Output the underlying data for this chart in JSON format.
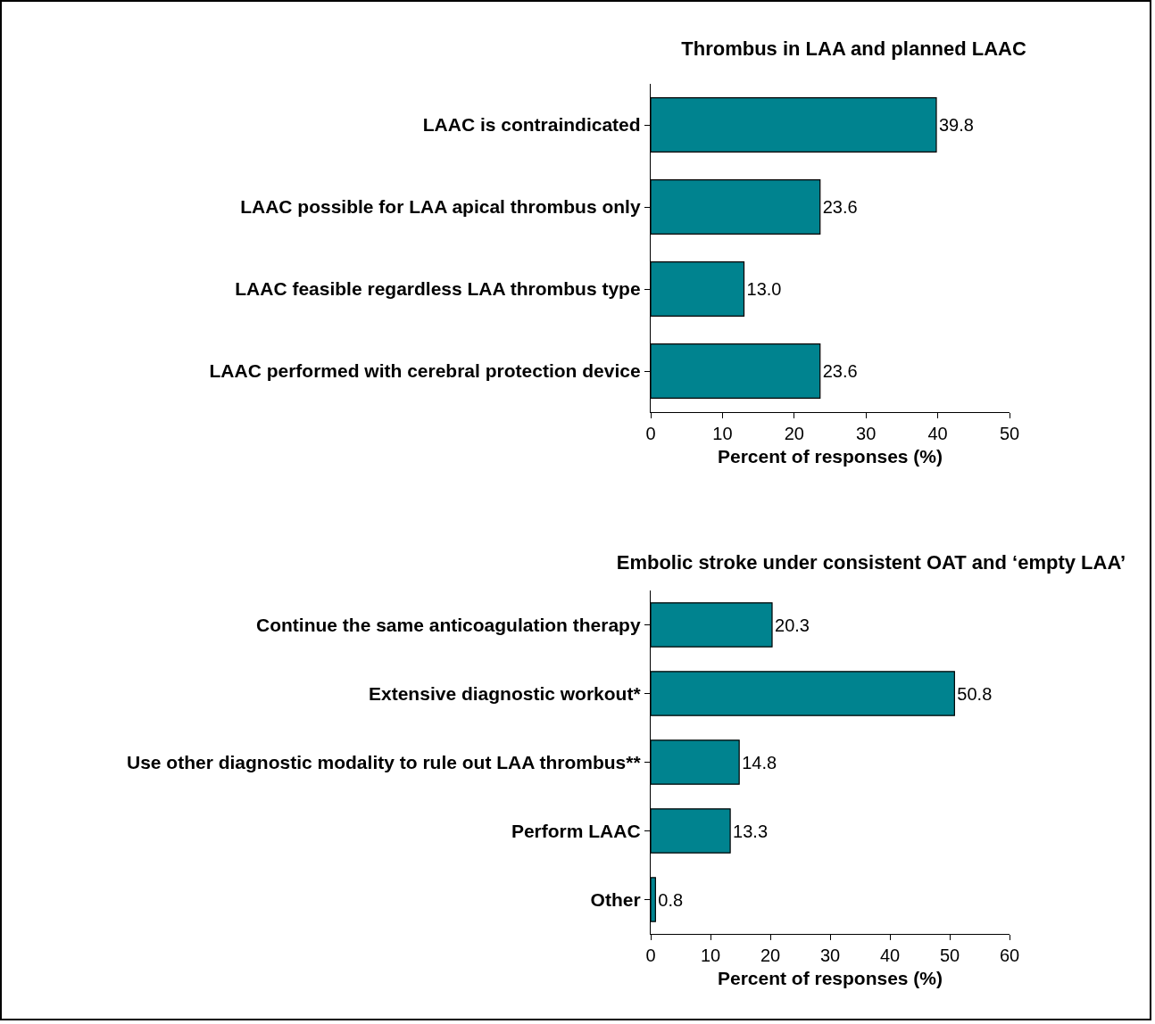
{
  "chart_data": [
    {
      "type": "bar",
      "orientation": "horizontal",
      "title": "Thrombus in LAA and planned LAAC",
      "xlabel": "Percent of responses (%)",
      "categories": [
        "LAAC is contraindicated",
        "LAAC possible for LAA apical thrombus only",
        "LAAC feasible regardless LAA thrombus type",
        "LAAC performed with cerebral protection device"
      ],
      "values": [
        39.8,
        23.6,
        13.0,
        23.6
      ],
      "value_labels": [
        "39.8",
        "23.6",
        "13.0",
        "23.6"
      ],
      "color": "#00838f",
      "xlim": [
        0,
        50
      ],
      "xticks": [
        0,
        10,
        20,
        30,
        40,
        50
      ],
      "grid": false
    },
    {
      "type": "bar",
      "orientation": "horizontal",
      "title": "Embolic stroke under consistent OAT and ‘empty LAA’",
      "xlabel": "Percent of responses (%)",
      "categories": [
        "Continue the same anticoagulation therapy",
        "Extensive diagnostic workout*",
        "Use other diagnostic modality to rule out LAA thrombus**",
        "Perform LAAC",
        "Other"
      ],
      "values": [
        20.3,
        50.8,
        14.8,
        13.3,
        0.8
      ],
      "value_labels": [
        "20.3",
        "50.8",
        "14.8",
        "13.3",
        "0.8"
      ],
      "color": "#00838f",
      "xlim": [
        0,
        60
      ],
      "xticks": [
        0,
        10,
        20,
        30,
        40,
        50,
        60
      ],
      "grid": false
    }
  ]
}
